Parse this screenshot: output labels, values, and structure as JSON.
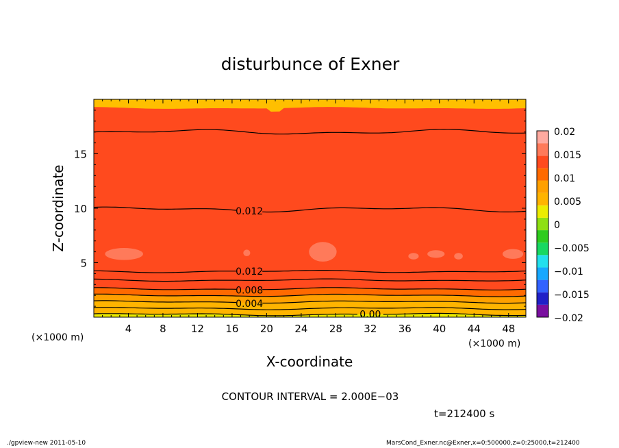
{
  "chart_data": {
    "type": "heatmap",
    "title": "disturbunce of Exner",
    "xlabel": "X-coordinate",
    "ylabel": "Z-coordinate",
    "x_unit": "(×1000 m)",
    "y_unit": "(×1000 m)",
    "xlim": [
      0,
      50
    ],
    "ylim": [
      0,
      20
    ],
    "x_ticks": [
      4,
      8,
      12,
      16,
      20,
      24,
      28,
      32,
      36,
      40,
      44,
      48
    ],
    "y_ticks": [
      5,
      10,
      15
    ],
    "colorbar": {
      "min": -0.02,
      "max": 0.02,
      "tick_labels": [
        "0.02",
        "0.015",
        "0.01",
        "0.005",
        "0",
        "−0.005",
        "−0.01",
        "−0.015",
        "−0.02"
      ],
      "tick_values": [
        0.02,
        0.015,
        0.01,
        0.005,
        0,
        -0.005,
        -0.01,
        -0.015,
        -0.02
      ]
    },
    "colors": [
      "#7a0fa0",
      "#2020c8",
      "#3262ff",
      "#16a8ff",
      "#22e0ee",
      "#18d862",
      "#2ecc1e",
      "#8ee012",
      "#ecec00",
      "#ffb400",
      "#ffa000",
      "#ff6a00",
      "#ff4a1e",
      "#ff7a5a",
      "#ffaaa0"
    ],
    "contour_interval": 0.002,
    "contours": [
      {
        "value": 0.014,
        "z": 17.0,
        "label": ""
      },
      {
        "value": 0.012,
        "z": 9.9,
        "label": "0.012",
        "label_x": 18
      },
      {
        "value": 0.012,
        "z": 4.2,
        "label": "0.012",
        "label_x": 18
      },
      {
        "value": 0.01,
        "z": 3.4,
        "label": ""
      },
      {
        "value": 0.008,
        "z": 2.6,
        "label": "0.008",
        "label_x": 18
      },
      {
        "value": 0.006,
        "z": 2.0,
        "label": ""
      },
      {
        "value": 0.004,
        "z": 1.4,
        "label": "0.004",
        "label_x": 18
      },
      {
        "value": 0.002,
        "z": 0.8,
        "label": ""
      },
      {
        "value": 0.0,
        "z": 0.25,
        "label": "0.00",
        "label_x": 32
      }
    ],
    "annotations": {
      "contour_interval": "CONTOUR INTERVAL = 2.000E−03",
      "time": "t=212400 s"
    }
  },
  "footer": {
    "left": "./gpview-new   2011-05-10",
    "right": "MarsCond_Exner.nc@Exner,x=0:500000,z=0:25000,t=212400"
  }
}
